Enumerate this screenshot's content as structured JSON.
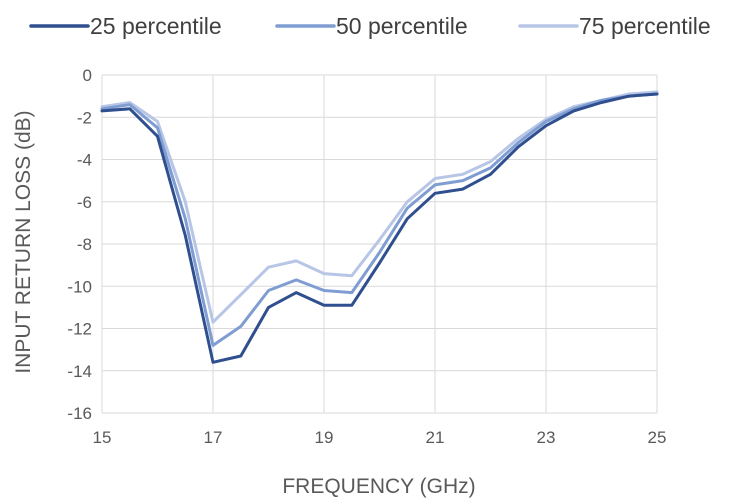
{
  "chart_data": {
    "type": "line",
    "xlabel": "FREQUENCY (GHz)",
    "ylabel": "INPUT RETURN LOSS (dB)",
    "xlim": [
      15,
      25
    ],
    "ylim": [
      -16,
      0
    ],
    "x_ticks": [
      "15",
      "17",
      "19",
      "21",
      "23",
      "25"
    ],
    "y_ticks": [
      "0",
      "-2",
      "-4",
      "-6",
      "-8",
      "-10",
      "-12",
      "-14",
      "-16"
    ],
    "grid": true,
    "legend_position": "top",
    "x": [
      15,
      15.5,
      16,
      16.5,
      17,
      17.5,
      18,
      18.5,
      19,
      19.5,
      20,
      20.5,
      21,
      21.5,
      22,
      22.5,
      23,
      23.5,
      24,
      24.5,
      25
    ],
    "series": [
      {
        "name": "25 percentile",
        "color": "#2f4f8f",
        "values": [
          -1.7,
          -1.6,
          -2.9,
          -7.6,
          -13.6,
          -13.3,
          -11.0,
          -10.3,
          -10.9,
          -10.9,
          -8.9,
          -6.8,
          -5.6,
          -5.4,
          -4.7,
          -3.4,
          -2.4,
          -1.7,
          -1.3,
          -1.0,
          -0.9
        ]
      },
      {
        "name": "50 percentile",
        "color": "#7f9dd2",
        "values": [
          -1.6,
          -1.4,
          -2.5,
          -6.8,
          -12.8,
          -11.9,
          -10.2,
          -9.7,
          -10.2,
          -10.3,
          -8.4,
          -6.3,
          -5.2,
          -5.0,
          -4.4,
          -3.2,
          -2.2,
          -1.6,
          -1.2,
          -1.0,
          -0.9
        ]
      },
      {
        "name": "75 percentile",
        "color": "#b7c6e6",
        "values": [
          -1.5,
          -1.3,
          -2.2,
          -6.0,
          -11.7,
          -10.4,
          -9.1,
          -8.8,
          -9.4,
          -9.5,
          -7.8,
          -6.0,
          -4.9,
          -4.7,
          -4.1,
          -3.0,
          -2.1,
          -1.5,
          -1.2,
          -0.9,
          -0.8
        ]
      }
    ]
  }
}
